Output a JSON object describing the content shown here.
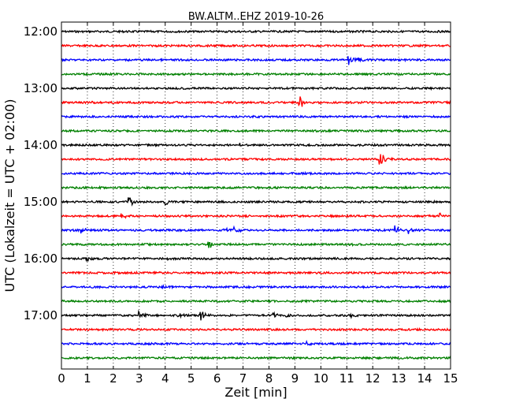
{
  "chart_data": {
    "type": "line",
    "title": "BW.ALTM..EHZ 2019-10-26",
    "xlabel": "Zeit  [min]",
    "ylabel": "UTC (Lokalzeit = UTC + 02:00)",
    "xlim": [
      0,
      15
    ],
    "xticks": [
      "0",
      "1",
      "2",
      "3",
      "4",
      "5",
      "6",
      "7",
      "8",
      "9",
      "10",
      "11",
      "12",
      "13",
      "14",
      "15"
    ],
    "yticks": [
      "12:00",
      "13:00",
      "14:00",
      "15:00",
      "16:00",
      "17:00"
    ],
    "grid": "vertical dotted at each minute",
    "traces": [
      {
        "start": "12:00",
        "color": "#000000",
        "events": []
      },
      {
        "start": "12:15",
        "color": "#ff0000",
        "events": []
      },
      {
        "start": "12:30",
        "color": "#0000ff",
        "events": [
          {
            "t": 11.1,
            "amp": 6
          },
          {
            "t": 11.5,
            "amp": 3
          }
        ]
      },
      {
        "start": "12:45",
        "color": "#008000",
        "events": []
      },
      {
        "start": "13:00",
        "color": "#000000",
        "events": []
      },
      {
        "start": "13:15",
        "color": "#ff0000",
        "events": [
          {
            "t": 9.2,
            "amp": 8
          },
          {
            "t": 1.2,
            "amp": 2
          }
        ]
      },
      {
        "start": "13:30",
        "color": "#0000ff",
        "events": []
      },
      {
        "start": "13:45",
        "color": "#008000",
        "events": []
      },
      {
        "start": "14:00",
        "color": "#000000",
        "events": [
          {
            "t": 6.9,
            "amp": 2
          }
        ]
      },
      {
        "start": "14:15",
        "color": "#ff0000",
        "events": [
          {
            "t": 12.3,
            "amp": 10
          }
        ]
      },
      {
        "start": "14:30",
        "color": "#0000ff",
        "events": []
      },
      {
        "start": "14:45",
        "color": "#008000",
        "events": []
      },
      {
        "start": "15:00",
        "color": "#000000",
        "events": [
          {
            "t": 2.6,
            "amp": 8
          },
          {
            "t": 4.0,
            "amp": 4
          }
        ]
      },
      {
        "start": "15:15",
        "color": "#ff0000",
        "events": [
          {
            "t": 2.3,
            "amp": 6
          },
          {
            "t": 14.6,
            "amp": 3
          }
        ]
      },
      {
        "start": "15:30",
        "color": "#0000ff",
        "events": [
          {
            "t": 0.8,
            "amp": 3
          },
          {
            "t": 6.3,
            "amp": 4
          },
          {
            "t": 6.7,
            "amp": 5
          },
          {
            "t": 12.9,
            "amp": 5
          },
          {
            "t": 13.4,
            "amp": 4
          }
        ]
      },
      {
        "start": "15:45",
        "color": "#008000",
        "events": [
          {
            "t": 5.7,
            "amp": 5
          },
          {
            "t": 11.0,
            "amp": 2
          }
        ]
      },
      {
        "start": "16:00",
        "color": "#000000",
        "events": [
          {
            "t": 1.0,
            "amp": 3
          },
          {
            "t": 4.0,
            "amp": 2
          }
        ]
      },
      {
        "start": "16:15",
        "color": "#ff0000",
        "events": []
      },
      {
        "start": "16:30",
        "color": "#0000ff",
        "events": [
          {
            "t": 3.9,
            "amp": 3
          }
        ]
      },
      {
        "start": "16:45",
        "color": "#008000",
        "events": []
      },
      {
        "start": "17:00",
        "color": "#000000",
        "events": [
          {
            "t": 3.0,
            "amp": 5
          },
          {
            "t": 4.5,
            "amp": 3
          },
          {
            "t": 5.4,
            "amp": 6
          },
          {
            "t": 8.2,
            "amp": 4
          },
          {
            "t": 8.7,
            "amp": 3
          },
          {
            "t": 11.2,
            "amp": 3
          }
        ]
      },
      {
        "start": "17:15",
        "color": "#ff0000",
        "events": []
      },
      {
        "start": "17:30",
        "color": "#0000ff",
        "events": [
          {
            "t": 9.5,
            "amp": 3
          }
        ]
      },
      {
        "start": "17:45",
        "color": "#008000",
        "events": []
      }
    ]
  }
}
